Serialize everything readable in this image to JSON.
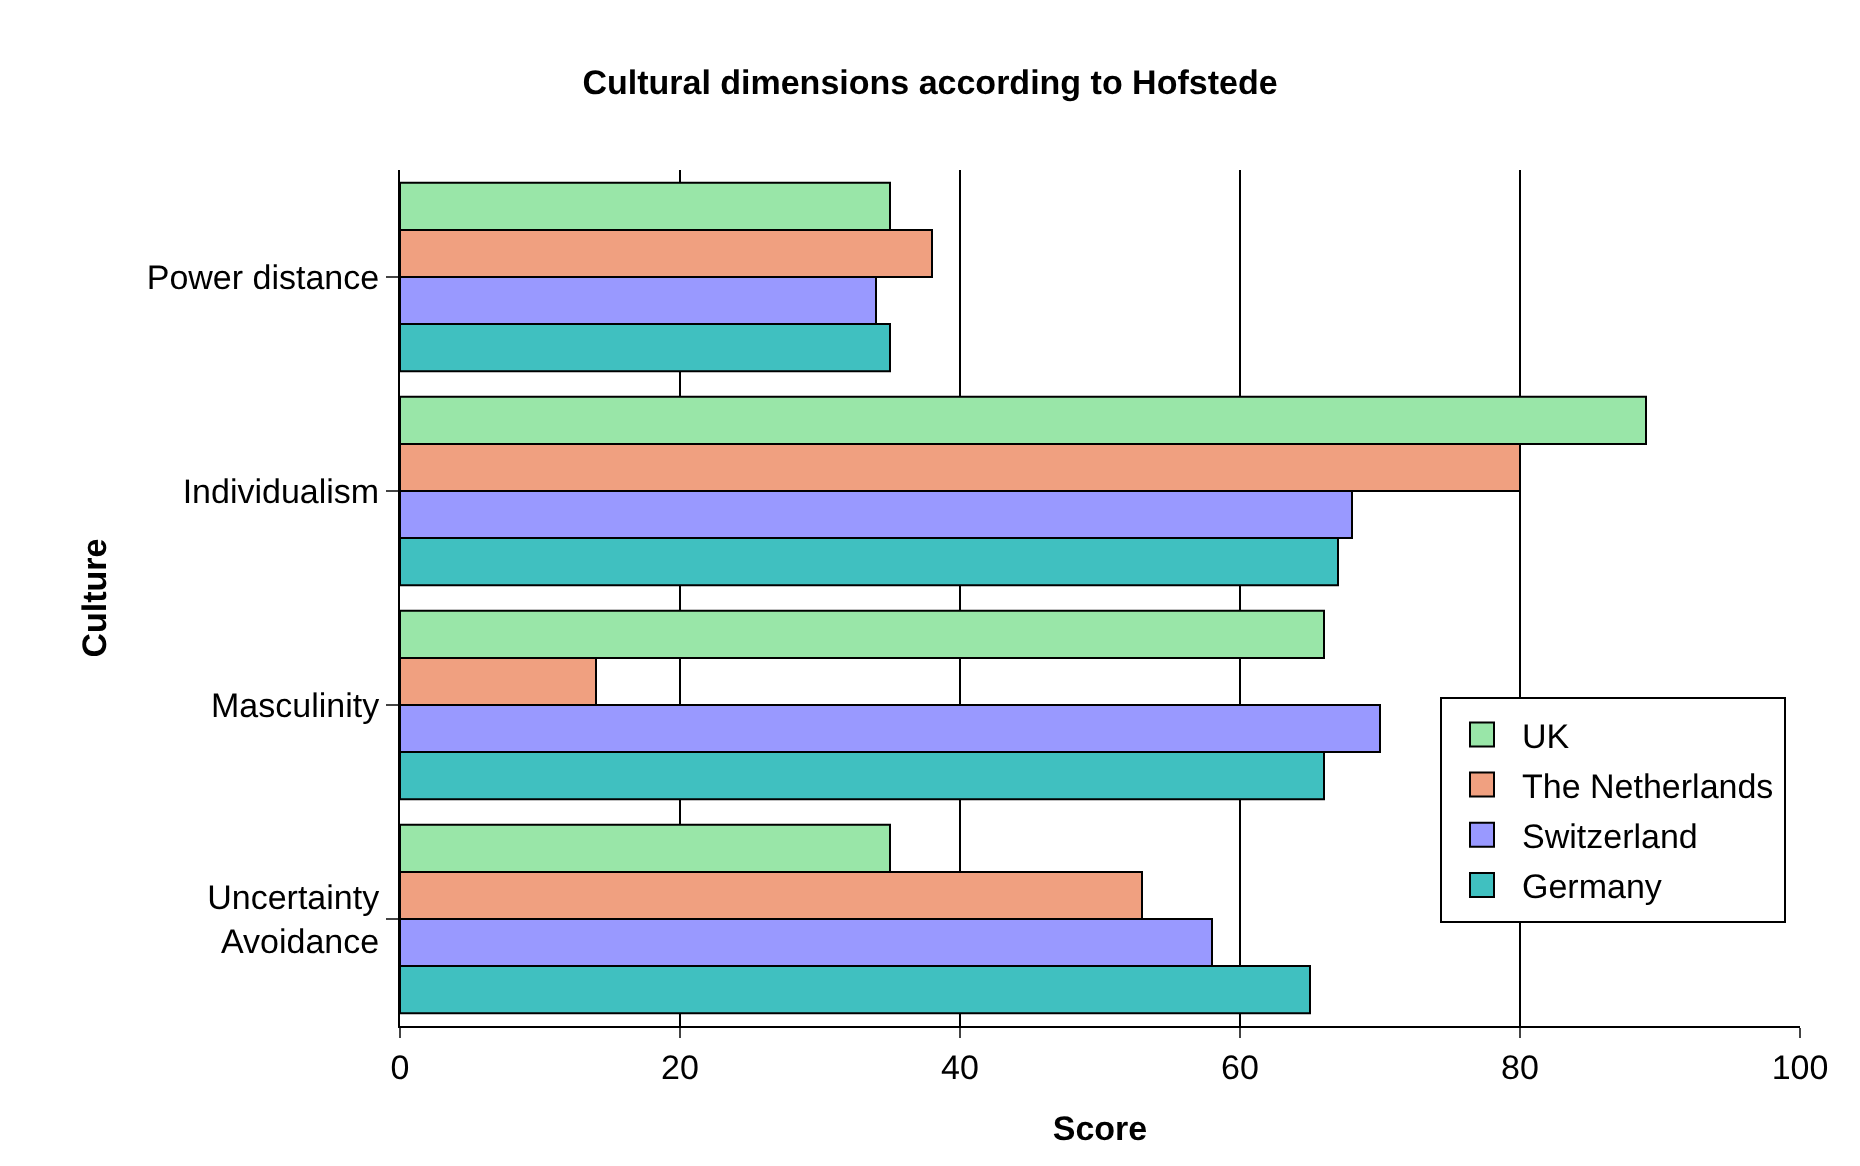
{
  "chart_data": {
    "type": "bar",
    "orientation": "horizontal",
    "title": "Cultural dimensions according to Hofstede",
    "xlabel": "Score",
    "ylabel": "Culture",
    "categories": [
      "Power distance",
      "Individualism",
      "Masculinity",
      "Uncertainty Avoidance"
    ],
    "series": [
      {
        "name": "UK",
        "color": "#99e6a8",
        "values": [
          35,
          89,
          66,
          35
        ]
      },
      {
        "name": "The Netherlands",
        "color": "#f0a080",
        "values": [
          38,
          80,
          14,
          53
        ]
      },
      {
        "name": "Switzerland",
        "color": "#9999ff",
        "values": [
          34,
          68,
          70,
          58
        ]
      },
      {
        "name": "Germany",
        "color": "#40c0c0",
        "values": [
          35,
          67,
          66,
          65
        ]
      }
    ],
    "xlim": [
      0,
      100
    ],
    "xticks": [
      0,
      20,
      40,
      60,
      80,
      100
    ],
    "grid": "x",
    "legend": "right"
  }
}
